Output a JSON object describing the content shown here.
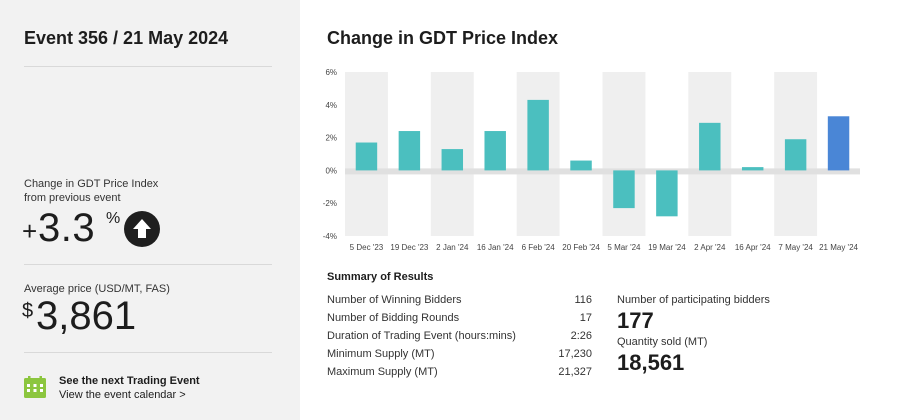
{
  "event": {
    "title": "Event 356 / 21 May 2024"
  },
  "change": {
    "label_line1": "Change in GDT Price Index",
    "label_line2": "from previous event",
    "sign": "+",
    "value": "3.3",
    "unit": "%",
    "direction_icon": "arrow-up-icon"
  },
  "price": {
    "label": "Average price (USD/MT, FAS)",
    "currency": "$",
    "value": "3,861"
  },
  "next_event": {
    "icon": "calendar-icon",
    "title": "See the next Trading Event",
    "link": "View the event calendar >"
  },
  "colors": {
    "bar": "#4bbfbf",
    "current_bar": "#4a86d6",
    "calendar_icon": "#8cc63f"
  },
  "chart_data": {
    "type": "bar",
    "title": "Change in GDT Price Index",
    "categories": [
      "5 Dec '23",
      "19 Dec '23",
      "2 Jan '24",
      "16 Jan '24",
      "6 Feb '24",
      "20 Feb '24",
      "5 Mar '24",
      "19 Mar '24",
      "2 Apr '24",
      "16 Apr '24",
      "7 May '24",
      "21 May '24"
    ],
    "values": [
      1.7,
      2.4,
      1.3,
      2.4,
      4.3,
      0.6,
      -2.3,
      -2.8,
      2.9,
      0.2,
      1.9,
      3.3
    ],
    "ylim": [
      -4,
      6
    ],
    "yticks": [
      -4,
      -2,
      0,
      2,
      4,
      6
    ],
    "ytick_labels": [
      "-4%",
      "-2%",
      "0%",
      "2%",
      "4%",
      "6%"
    ],
    "highlight_last": true
  },
  "summary": {
    "title": "Summary of Results",
    "rows": [
      {
        "label": "Number of Winning Bidders",
        "value": "116"
      },
      {
        "label": "Number of Bidding Rounds",
        "value": "17"
      },
      {
        "label": "Duration of Trading Event (hours:mins)",
        "value": "2:26"
      },
      {
        "label": "Minimum Supply (MT)",
        "value": "17,230"
      },
      {
        "label": "Maximum Supply (MT)",
        "value": "21,327"
      }
    ],
    "bidders_label": "Number of participating bidders",
    "bidders_value": "177",
    "sold_label": "Quantity sold (MT)",
    "sold_value": "18,561"
  }
}
